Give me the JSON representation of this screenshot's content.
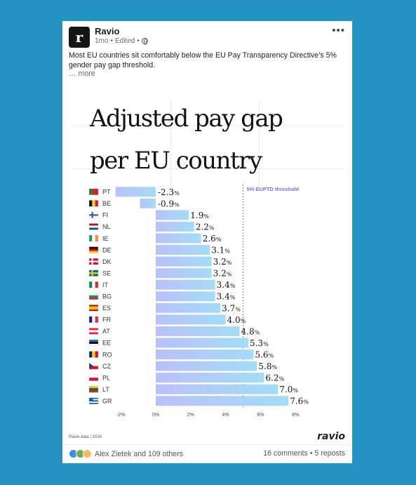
{
  "post": {
    "author": "Ravio",
    "logo_letter": "r",
    "age": "1mo",
    "edited": "Edited",
    "text": "Most EU countries sit comfortably below the EU Pay Transparency Directive’s 5% gender pay gap threshold.",
    "see_more": "… more",
    "menu": "•••"
  },
  "image": {
    "headline_line1": "Adjusted pay gap",
    "headline_line2": "per EU country",
    "source": "Ravio data | 2026",
    "brand": "ravio"
  },
  "social": {
    "reactions": "Alex Zietek and 109 others",
    "comments": "16 comments",
    "separator": "•",
    "reposts": "5 reposts"
  },
  "colors": {
    "background": "#2594c4",
    "bar_start": "#b9c0fb",
    "bar_end": "#a3dcf6",
    "threshold": "#7b6cf0"
  },
  "chart_data": {
    "type": "bar",
    "orientation": "horizontal",
    "categories": [
      "PT",
      "BE",
      "FI",
      "NL",
      "IE",
      "DE",
      "DK",
      "SE",
      "IT",
      "BG",
      "ES",
      "FR",
      "AT",
      "EE",
      "RO",
      "CZ",
      "PL",
      "LT",
      "GR"
    ],
    "values": [
      -2.3,
      -0.9,
      1.9,
      2.2,
      2.6,
      3.1,
      3.2,
      3.2,
      3.4,
      3.4,
      3.7,
      4.0,
      4.8,
      5.3,
      5.6,
      5.8,
      6.2,
      7.0,
      7.6
    ],
    "value_labels": [
      "-2.3%",
      "-0.9%",
      "1.9%",
      "2.2%",
      "2.6%",
      "3.1%",
      "3.2%",
      "3.2%",
      "3.4%",
      "3.4%",
      "3.7%",
      "4.0%",
      "4.8%",
      "5.3%",
      "5.6%",
      "5.8%",
      "6.2%",
      "7.0%",
      "7.6%"
    ],
    "x_ticks": [
      -2,
      0,
      2,
      4,
      6,
      8
    ],
    "x_tick_labels": [
      "-2%",
      "0%",
      "2%",
      "4%",
      "6%",
      "8%"
    ],
    "xlim": [
      -2.3,
      8
    ],
    "threshold": 5,
    "threshold_label": "5% EUPTD threshold",
    "flags": [
      {
        "dir": "v",
        "colors": [
          "#2a7a2a",
          "#2a7a2a",
          "#d22020",
          "#d22020",
          "#d22020"
        ]
      },
      {
        "dir": "v",
        "colors": [
          "#111111",
          "#f4d02a",
          "#d22020"
        ]
      },
      {
        "cross": true,
        "bg": "#ffffff",
        "fg": "#2b5dab"
      },
      {
        "dir": "h",
        "colors": [
          "#ad1d28",
          "#ffffff",
          "#21468b"
        ]
      },
      {
        "dir": "v",
        "colors": [
          "#169b62",
          "#ffffff",
          "#ff883e"
        ]
      },
      {
        "dir": "h",
        "colors": [
          "#111111",
          "#dd0000",
          "#ffce00"
        ]
      },
      {
        "cross": true,
        "bg": "#c8102e",
        "fg": "#ffffff"
      },
      {
        "cross": true,
        "bg": "#006aa7",
        "fg": "#fecc00"
      },
      {
        "dir": "v",
        "colors": [
          "#009246",
          "#ffffff",
          "#ce2b37"
        ]
      },
      {
        "dir": "h",
        "colors": [
          "#ffffff",
          "#00966e",
          "#d62612"
        ]
      },
      {
        "dir": "h",
        "colors": [
          "#aa151b",
          "#f1bf00",
          "#f1bf00",
          "#aa151b"
        ]
      },
      {
        "dir": "v",
        "colors": [
          "#002395",
          "#ffffff",
          "#ed2939"
        ]
      },
      {
        "dir": "h",
        "colors": [
          "#ed2939",
          "#ffffff",
          "#ed2939"
        ]
      },
      {
        "dir": "h",
        "colors": [
          "#0072ce",
          "#111111",
          "#ffffff"
        ]
      },
      {
        "dir": "v",
        "colors": [
          "#002b7f",
          "#fcd116",
          "#ce1126"
        ]
      },
      {
        "dir": "h",
        "colors": [
          "#ffffff",
          "#d7141a"
        ],
        "tri": "#11457e"
      },
      {
        "dir": "h",
        "colors": [
          "#ffffff",
          "#dc143c"
        ]
      },
      {
        "dir": "h",
        "colors": [
          "#fdb913",
          "#006a44",
          "#c1272d"
        ]
      },
      {
        "dir": "h",
        "colors": [
          "#0d5eaf",
          "#ffffff",
          "#0d5eaf",
          "#ffffff",
          "#0d5eaf"
        ],
        "canton": "#0d5eaf"
      }
    ]
  }
}
